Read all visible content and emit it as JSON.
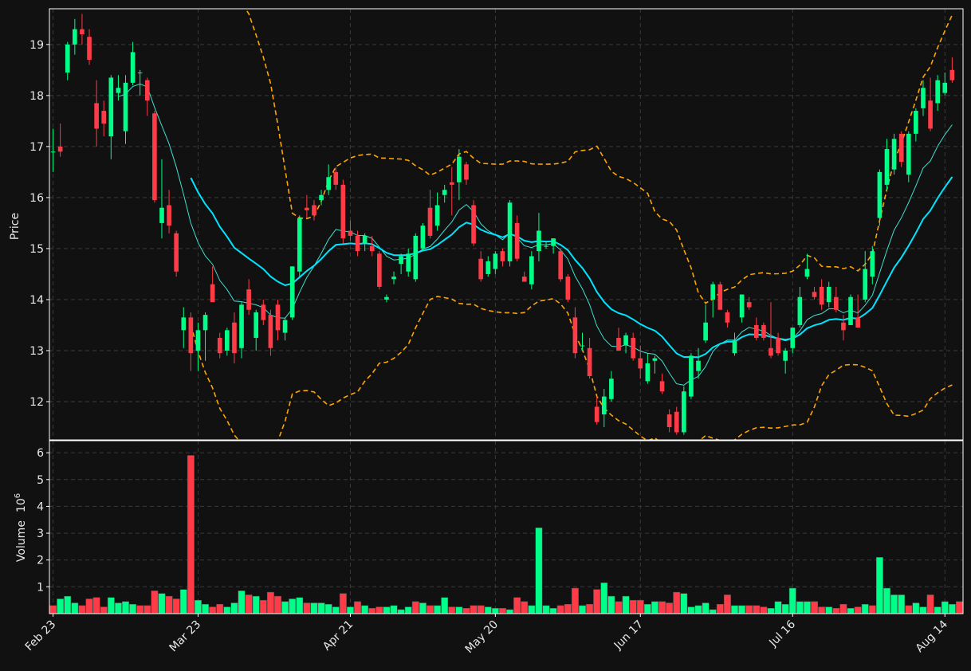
{
  "colors": {
    "background": "#111111",
    "up": "#00ff88",
    "down": "#ff3b47",
    "ma_fast": "#40e0d0",
    "ma_slow": "#00e5ff",
    "bands": "#ffa500",
    "grid": "#3a3a3a",
    "frame": "#ffffff",
    "text": "#e8e8e8"
  },
  "chart_data": {
    "type": "candlestick",
    "price_panel": {
      "ylabel": "Price",
      "ylim": [
        11.25,
        19.7
      ],
      "yticks": [
        12,
        13,
        14,
        15,
        16,
        17,
        18,
        19
      ],
      "grid": true
    },
    "volume_panel": {
      "ylabel": "Volume",
      "ylabel_exponent": "10",
      "ylabel_exponent_power": "6",
      "unit_multiplier": 1000000,
      "ylim": [
        0,
        6.45
      ],
      "yticks": [
        1,
        2,
        3,
        4,
        5,
        6
      ],
      "grid": true
    },
    "x_ticks": [
      {
        "label": "Feb 23",
        "index": 0
      },
      {
        "label": "Mar 23",
        "index": 20
      },
      {
        "label": "Apr 21",
        "index": 41
      },
      {
        "label": "May 20",
        "index": 61
      },
      {
        "label": "Jun 17",
        "index": 81
      },
      {
        "label": "Jul 16",
        "index": 102
      },
      {
        "label": "Aug 14",
        "index": 123
      }
    ],
    "n_periods": 126,
    "candles": [
      [
        16.9,
        17.35,
        16.5,
        16.9
      ],
      [
        17.0,
        17.45,
        16.8,
        16.9
      ],
      [
        18.45,
        19.05,
        18.3,
        19.0
      ],
      [
        19.0,
        19.5,
        18.8,
        19.3
      ],
      [
        19.3,
        19.6,
        19.0,
        19.2
      ],
      [
        19.15,
        19.3,
        18.6,
        18.7
      ],
      [
        17.85,
        18.3,
        17.0,
        17.35
      ],
      [
        17.7,
        17.9,
        17.2,
        17.45
      ],
      [
        17.2,
        18.4,
        16.75,
        18.35
      ],
      [
        18.05,
        18.4,
        17.9,
        18.15
      ],
      [
        17.3,
        18.4,
        17.05,
        18.25
      ],
      [
        18.25,
        19.05,
        18.2,
        18.85
      ],
      [
        18.45,
        18.5,
        18.0,
        18.45
      ],
      [
        18.3,
        18.35,
        17.6,
        17.9
      ],
      [
        17.65,
        17.7,
        15.9,
        15.95
      ],
      [
        15.5,
        16.75,
        15.2,
        15.8
      ],
      [
        15.85,
        16.15,
        15.3,
        15.45
      ],
      [
        15.3,
        15.35,
        14.45,
        14.55
      ],
      [
        13.4,
        13.85,
        13.05,
        13.65
      ],
      [
        13.65,
        13.75,
        12.6,
        12.95
      ],
      [
        13.0,
        13.55,
        12.6,
        13.4
      ],
      [
        13.4,
        13.75,
        12.8,
        13.7
      ],
      [
        14.3,
        14.65,
        13.95,
        13.95
      ],
      [
        13.25,
        13.35,
        12.85,
        12.95
      ],
      [
        13.0,
        13.45,
        12.9,
        13.4
      ],
      [
        13.55,
        13.75,
        12.75,
        12.95
      ],
      [
        13.05,
        13.95,
        12.85,
        13.9
      ],
      [
        14.2,
        14.4,
        13.7,
        13.8
      ],
      [
        13.25,
        13.8,
        13.0,
        13.75
      ],
      [
        13.9,
        14.0,
        13.5,
        13.6
      ],
      [
        13.7,
        13.8,
        12.9,
        13.05
      ],
      [
        13.9,
        14.0,
        13.2,
        13.4
      ],
      [
        13.35,
        13.65,
        13.2,
        13.6
      ],
      [
        13.65,
        14.65,
        13.6,
        14.65
      ],
      [
        14.55,
        15.65,
        14.45,
        15.6
      ],
      [
        15.8,
        16.05,
        15.6,
        15.75
      ],
      [
        15.85,
        15.95,
        15.55,
        15.65
      ],
      [
        15.95,
        16.15,
        15.85,
        16.05
      ],
      [
        16.15,
        16.65,
        16.05,
        16.4
      ],
      [
        16.5,
        16.6,
        16.15,
        16.25
      ],
      [
        16.25,
        16.35,
        15.1,
        15.2
      ],
      [
        15.35,
        15.55,
        15.15,
        15.25
      ],
      [
        15.25,
        15.35,
        14.85,
        14.95
      ],
      [
        15.1,
        15.3,
        14.95,
        15.25
      ],
      [
        15.05,
        15.25,
        14.85,
        14.95
      ],
      [
        14.9,
        14.95,
        14.2,
        14.25
      ],
      [
        14.0,
        14.1,
        13.95,
        14.05
      ],
      [
        14.4,
        14.55,
        14.3,
        14.45
      ],
      [
        14.7,
        14.9,
        14.5,
        14.85
      ],
      [
        14.55,
        15.0,
        14.45,
        14.9
      ],
      [
        14.4,
        15.3,
        14.35,
        15.25
      ],
      [
        15.0,
        15.5,
        14.95,
        15.45
      ],
      [
        15.8,
        16.15,
        15.2,
        15.25
      ],
      [
        15.45,
        16.1,
        15.35,
        15.85
      ],
      [
        16.05,
        16.25,
        15.9,
        16.15
      ],
      [
        16.3,
        16.6,
        15.65,
        16.25
      ],
      [
        16.3,
        16.95,
        15.95,
        16.8
      ],
      [
        16.65,
        16.7,
        16.25,
        16.35
      ],
      [
        15.85,
        15.95,
        15.05,
        15.1
      ],
      [
        14.8,
        14.95,
        14.35,
        14.4
      ],
      [
        14.5,
        14.85,
        14.45,
        14.75
      ],
      [
        14.6,
        14.95,
        14.5,
        14.9
      ],
      [
        14.95,
        15.0,
        14.65,
        14.75
      ],
      [
        14.75,
        15.95,
        14.65,
        15.9
      ],
      [
        15.5,
        15.65,
        14.75,
        14.8
      ],
      [
        14.45,
        14.55,
        14.35,
        14.35
      ],
      [
        14.3,
        14.95,
        14.2,
        14.85
      ],
      [
        14.95,
        15.7,
        14.75,
        15.35
      ],
      [
        15.05,
        15.15,
        15.0,
        15.05
      ],
      [
        15.05,
        15.2,
        14.9,
        15.2
      ],
      [
        14.95,
        15.0,
        14.35,
        14.4
      ],
      [
        14.45,
        14.5,
        13.95,
        14.0
      ],
      [
        13.65,
        13.85,
        12.85,
        12.95
      ],
      [
        13.1,
        13.35,
        13.0,
        13.1
      ],
      [
        13.05,
        13.25,
        12.45,
        12.5
      ],
      [
        11.9,
        12.1,
        11.55,
        11.6
      ],
      [
        11.75,
        12.25,
        11.5,
        12.1
      ],
      [
        12.05,
        12.6,
        12.0,
        12.45
      ],
      [
        13.25,
        13.45,
        13.0,
        13.0
      ],
      [
        13.1,
        13.35,
        12.95,
        13.3
      ],
      [
        13.25,
        13.35,
        12.8,
        12.85
      ],
      [
        12.85,
        13.1,
        12.45,
        12.65
      ],
      [
        12.4,
        12.95,
        12.35,
        12.75
      ],
      [
        12.8,
        12.9,
        12.55,
        12.85
      ],
      [
        12.4,
        12.55,
        12.15,
        12.2
      ],
      [
        11.75,
        11.85,
        11.4,
        11.5
      ],
      [
        11.8,
        11.9,
        11.35,
        11.4
      ],
      [
        11.4,
        12.3,
        11.35,
        12.2
      ],
      [
        12.1,
        12.95,
        12.05,
        12.9
      ],
      [
        12.6,
        13.05,
        12.45,
        12.8
      ],
      [
        13.2,
        13.9,
        13.15,
        13.55
      ],
      [
        14.0,
        14.35,
        13.65,
        14.3
      ],
      [
        14.3,
        14.35,
        13.85,
        13.8
      ],
      [
        13.75,
        13.8,
        13.45,
        13.55
      ],
      [
        12.95,
        13.35,
        12.9,
        13.2
      ],
      [
        13.65,
        14.1,
        13.55,
        14.1
      ],
      [
        13.95,
        14.05,
        13.8,
        13.85
      ],
      [
        13.5,
        13.65,
        13.2,
        13.25
      ],
      [
        13.5,
        13.55,
        13.2,
        13.25
      ],
      [
        13.05,
        13.95,
        12.85,
        12.9
      ],
      [
        13.25,
        13.35,
        12.9,
        12.95
      ],
      [
        12.8,
        13.05,
        12.55,
        13.0
      ],
      [
        13.05,
        13.45,
        12.95,
        13.45
      ],
      [
        13.5,
        14.25,
        13.45,
        14.05
      ],
      [
        14.45,
        14.9,
        14.4,
        14.6
      ],
      [
        14.15,
        14.25,
        14.0,
        14.05
      ],
      [
        14.25,
        14.4,
        13.8,
        13.9
      ],
      [
        13.95,
        14.35,
        13.85,
        14.25
      ],
      [
        14.05,
        14.25,
        13.75,
        13.8
      ],
      [
        13.55,
        13.7,
        13.2,
        13.4
      ],
      [
        13.5,
        14.1,
        13.5,
        14.05
      ],
      [
        13.65,
        14.1,
        13.45,
        13.45
      ],
      [
        14.0,
        14.95,
        13.95,
        14.6
      ],
      [
        14.45,
        15.05,
        14.3,
        14.95
      ],
      [
        15.6,
        16.55,
        15.45,
        16.5
      ],
      [
        16.25,
        17.15,
        16.15,
        16.95
      ],
      [
        16.55,
        17.25,
        16.45,
        17.15
      ],
      [
        17.25,
        17.3,
        16.6,
        16.7
      ],
      [
        16.45,
        17.3,
        16.3,
        17.25
      ],
      [
        17.25,
        17.75,
        17.1,
        17.7
      ],
      [
        17.75,
        18.3,
        17.6,
        18.15
      ],
      [
        17.9,
        18.35,
        17.3,
        17.35
      ],
      [
        17.85,
        18.4,
        17.7,
        18.3
      ],
      [
        18.05,
        18.45,
        18.0,
        18.25
      ],
      [
        18.5,
        18.75,
        18.25,
        18.3
      ]
    ],
    "volume": [
      0.3,
      0.55,
      0.65,
      0.4,
      0.3,
      0.55,
      0.6,
      0.25,
      0.6,
      0.4,
      0.45,
      0.35,
      0.3,
      0.3,
      0.85,
      0.75,
      0.65,
      0.55,
      0.9,
      5.9,
      0.5,
      0.35,
      0.25,
      0.35,
      0.25,
      0.4,
      0.85,
      0.7,
      0.65,
      0.5,
      0.8,
      0.65,
      0.45,
      0.55,
      0.6,
      0.4,
      0.4,
      0.4,
      0.35,
      0.25,
      0.75,
      0.25,
      0.45,
      0.3,
      0.2,
      0.25,
      0.25,
      0.3,
      0.15,
      0.25,
      0.45,
      0.4,
      0.3,
      0.3,
      0.6,
      0.25,
      0.25,
      0.2,
      0.3,
      0.3,
      0.25,
      0.2,
      0.2,
      0.15,
      0.6,
      0.45,
      0.3,
      3.2,
      0.3,
      0.2,
      0.3,
      0.35,
      0.95,
      0.3,
      0.35,
      0.9,
      1.15,
      0.65,
      0.45,
      0.65,
      0.5,
      0.5,
      0.35,
      0.45,
      0.45,
      0.4,
      0.8,
      0.75,
      0.25,
      0.3,
      0.4,
      0.15,
      0.35,
      0.7,
      0.3,
      0.3,
      0.3,
      0.3,
      0.25,
      0.2,
      0.45,
      0.35,
      0.95,
      0.45,
      0.45,
      0.45,
      0.25,
      0.25,
      0.2,
      0.35,
      0.2,
      0.25,
      0.35,
      0.3,
      2.1,
      0.95,
      0.7,
      0.7,
      0.3,
      0.4,
      0.25,
      0.7,
      0.25,
      0.45,
      0.35,
      0.45
    ],
    "volume_color": [
      "down",
      "up",
      "up",
      "up",
      "down",
      "down",
      "down",
      "down",
      "up",
      "up",
      "up",
      "up",
      "down",
      "down",
      "down",
      "up",
      "down",
      "down",
      "up",
      "down",
      "up",
      "up",
      "down",
      "down",
      "up",
      "up",
      "up",
      "down",
      "up",
      "down",
      "down",
      "down",
      "up",
      "up",
      "up",
      "down",
      "up",
      "up",
      "up",
      "up",
      "down",
      "up",
      "down",
      "up",
      "down",
      "down",
      "up",
      "up",
      "up",
      "up",
      "down",
      "up",
      "down",
      "up",
      "up",
      "down",
      "up",
      "down",
      "down",
      "down",
      "up",
      "up",
      "down",
      "up",
      "down",
      "down",
      "up",
      "up",
      "up",
      "up",
      "down",
      "down",
      "down",
      "up",
      "down",
      "down",
      "up",
      "up",
      "down",
      "up",
      "down",
      "down",
      "up",
      "up",
      "down",
      "down",
      "down",
      "up",
      "up",
      "up",
      "up",
      "up",
      "down",
      "down",
      "up",
      "up",
      "down",
      "down",
      "down",
      "up",
      "up",
      "up",
      "up",
      "up",
      "up",
      "down",
      "down",
      "up",
      "down",
      "down",
      "up",
      "down",
      "up",
      "down",
      "up",
      "up",
      "up",
      "up",
      "down",
      "up",
      "up",
      "down",
      "up",
      "up",
      "up",
      "down"
    ],
    "ma_fast_start": 9,
    "ma_slow_start": 19,
    "bb_window": 20
  }
}
